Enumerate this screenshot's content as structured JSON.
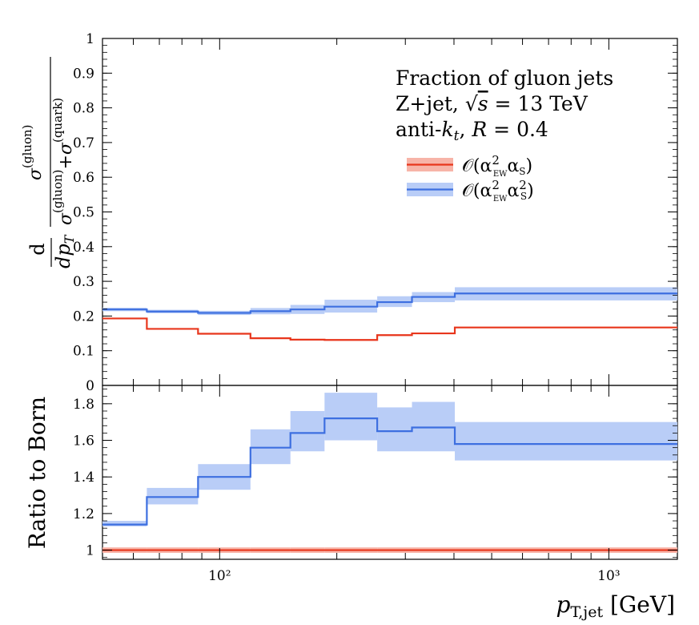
{
  "chart_data": [
    {
      "type": "line",
      "panel": "main",
      "title_lines": [
        "Fraction of gluon jets",
        "Z+jet, √s = 13 TeV",
        "anti-kₜ, R = 0.4"
      ],
      "ylabel": "d/dp_T σ(gluon)/(σ(gluon)+σ(quark))",
      "xlabel": "",
      "xscale": "log",
      "xlim": [
        50,
        1500
      ],
      "ylim": [
        0,
        1
      ],
      "yticks": [
        "0",
        "0.1",
        "0.2",
        "0.3",
        "0.4",
        "0.5",
        "0.6",
        "0.7",
        "0.8",
        "0.9",
        "1"
      ],
      "x_edges": [
        50,
        65,
        88,
        120,
        152,
        186,
        254,
        312,
        402,
        1500
      ],
      "legend_position": "top-right",
      "series": [
        {
          "name": "O(α²_EW α_S)",
          "color": "#e8361c",
          "band_color": "#f7b4a8",
          "values": [
            0.193,
            0.163,
            0.149,
            0.136,
            0.132,
            0.131,
            0.145,
            0.15,
            0.167
          ],
          "band_low": [
            0.191,
            0.161,
            0.147,
            0.134,
            0.13,
            0.129,
            0.143,
            0.148,
            0.165
          ],
          "band_high": [
            0.195,
            0.165,
            0.151,
            0.138,
            0.134,
            0.133,
            0.147,
            0.152,
            0.169
          ]
        },
        {
          "name": "O(α²_EW α²_S)",
          "color": "#3d6fe0",
          "band_color": "#b9cdf7",
          "values": [
            0.219,
            0.213,
            0.209,
            0.214,
            0.219,
            0.227,
            0.24,
            0.255,
            0.265
          ],
          "band_low": [
            0.214,
            0.208,
            0.203,
            0.205,
            0.206,
            0.21,
            0.226,
            0.24,
            0.245
          ],
          "band_high": [
            0.224,
            0.218,
            0.215,
            0.223,
            0.232,
            0.247,
            0.257,
            0.269,
            0.283
          ]
        }
      ]
    },
    {
      "type": "line",
      "panel": "ratio",
      "ylabel": "Ratio to Born",
      "xlabel": "p_T,jet [GeV]",
      "xscale": "log",
      "xlim": [
        50,
        1500
      ],
      "ylim": [
        0.95,
        1.9
      ],
      "yticks": [
        "1",
        "1.2",
        "1.4",
        "1.6",
        "1.8"
      ],
      "xticks": [
        {
          "value": 100,
          "label": "10²"
        },
        {
          "value": 1000,
          "label": "10³"
        }
      ],
      "x_edges": [
        50,
        65,
        88,
        120,
        152,
        186,
        254,
        312,
        402,
        1500
      ],
      "series": [
        {
          "name": "O(α²_EW α_S)",
          "color": "#e8361c",
          "band_color": "#f7b4a8",
          "values": [
            1.0,
            1.0,
            1.0,
            1.0,
            1.0,
            1.0,
            1.0,
            1.0,
            1.0
          ],
          "band_low": [
            0.985,
            0.985,
            0.985,
            0.985,
            0.985,
            0.985,
            0.985,
            0.985,
            0.985
          ],
          "band_high": [
            1.015,
            1.015,
            1.015,
            1.015,
            1.015,
            1.015,
            1.015,
            1.015,
            1.015
          ]
        },
        {
          "name": "O(α²_EW α²_S)",
          "color": "#3d6fe0",
          "band_color": "#b9cdf7",
          "values": [
            1.14,
            1.29,
            1.4,
            1.56,
            1.64,
            1.72,
            1.65,
            1.67,
            1.58
          ],
          "band_low": [
            1.13,
            1.25,
            1.33,
            1.47,
            1.54,
            1.6,
            1.54,
            1.54,
            1.49
          ],
          "band_high": [
            1.16,
            1.34,
            1.47,
            1.66,
            1.76,
            1.86,
            1.78,
            1.81,
            1.7
          ]
        }
      ]
    }
  ],
  "labels": {
    "title1": "Fraction of gluon jets",
    "title2_prefix": "Z+jet, ",
    "title2_s": "s",
    "title2_suffix": " = 13 TeV",
    "title3_prefix": "anti-",
    "title3_k": "k",
    "title3_t": "t",
    "title3_suffix": ", ",
    "title3_R": "R",
    "title3_val": " = 0.4",
    "legend1_main": "𝒪(α",
    "legend1_sup": "2",
    "legend1_sub": "EW",
    "legend1_tail": "α",
    "legend1_tail_sub": "S",
    "legend1_close": ")",
    "legend2_main": "𝒪(α",
    "legend2_sup": "2",
    "legend2_sub": "EW",
    "legend2_tail": "α",
    "legend2_tail_sup": "2",
    "legend2_tail_sub": "S",
    "legend2_close": ")",
    "ylabel_ratio": "Ratio to Born",
    "ylabel_d": "d",
    "ylabel_dpt": "dp",
    "ylabel_T": "T",
    "ylabel_num": "σ",
    "ylabel_num_sup": "(gluon)",
    "ylabel_den1": "σ",
    "ylabel_den1_sup": "(gluon)",
    "ylabel_plus": "+",
    "ylabel_den2": "σ",
    "ylabel_den2_sup": "(quark)",
    "xlabel_p": "p",
    "xlabel_sub": "T,jet",
    "xlabel_unit": " [GeV]"
  }
}
